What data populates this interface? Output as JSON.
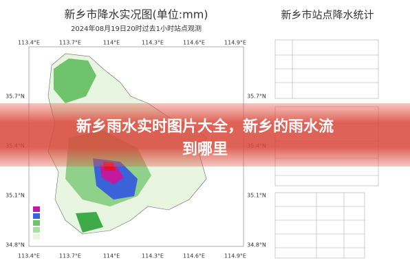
{
  "map": {
    "title": "新乡市降水实况图(单位:mm)",
    "subtitle": "2024年08月19日20时过去1小时站点观测",
    "lon_labels": [
      "113.4°E",
      "113.7°E",
      "114°E",
      "114.3°E",
      "114.6°E",
      "114.9°E"
    ],
    "lat_labels": [
      "35.7°N",
      "35.4°N",
      "35.1°N",
      "34.8°N"
    ]
  },
  "stats": {
    "title": "新乡市站点降水统计"
  },
  "overlay": {
    "lines": [
      "新乡雨水实时图片大全，新乡的雨水流",
      "到哪里"
    ]
  }
}
